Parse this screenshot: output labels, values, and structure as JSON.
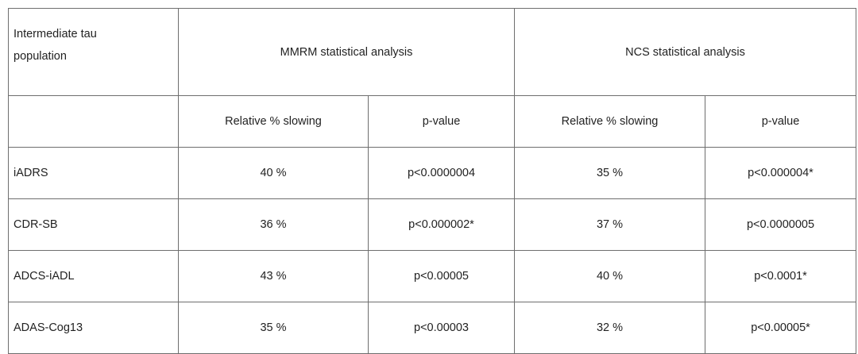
{
  "table": {
    "corner_label": "Intermediate tau population",
    "groups": [
      "MMRM statistical analysis",
      "NCS statistical analysis"
    ],
    "subheaders": [
      "Relative % slowing",
      "p-value",
      "Relative % slowing",
      "p-value"
    ],
    "rows": [
      {
        "label": "iADRS",
        "mmrm_slowing": "40 %",
        "mmrm_p": "p<0.0000004",
        "ncs_slowing": "35 %",
        "ncs_p": "p<0.000004*"
      },
      {
        "label": "CDR-SB",
        "mmrm_slowing": "36 %",
        "mmrm_p": "p<0.000002*",
        "ncs_slowing": "37 %",
        "ncs_p": "p<0.0000005"
      },
      {
        "label": "ADCS-iADL",
        "mmrm_slowing": "43 %",
        "mmrm_p": "p<0.00005",
        "ncs_slowing": "40 %",
        "ncs_p": "p<0.0001*"
      },
      {
        "label": "ADAS-Cog13",
        "mmrm_slowing": "35 %",
        "mmrm_p": "p<0.00003",
        "ncs_slowing": "32 %",
        "ncs_p": "p<0.00005*"
      }
    ]
  }
}
